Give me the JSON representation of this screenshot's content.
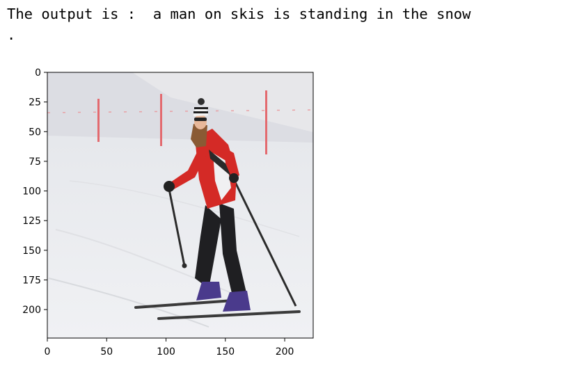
{
  "output": {
    "text": "The output is :  a man on skis is standing in the snow",
    "continuation": "."
  },
  "plot": {
    "type": "image",
    "image_subject": "skier in red jacket and striped beanie standing on snowy slope with ski poles",
    "x_ticks": [
      "0",
      "50",
      "100",
      "150",
      "200"
    ],
    "y_ticks": [
      "0",
      "25",
      "50",
      "75",
      "100",
      "125",
      "150",
      "175",
      "200"
    ],
    "x_range": [
      0,
      224
    ],
    "y_range": [
      0,
      224
    ],
    "colors": {
      "jacket": "#d42a26",
      "snow": "#eceef2",
      "sky": "#e4e4e8",
      "poles": "#e36a6f"
    }
  }
}
